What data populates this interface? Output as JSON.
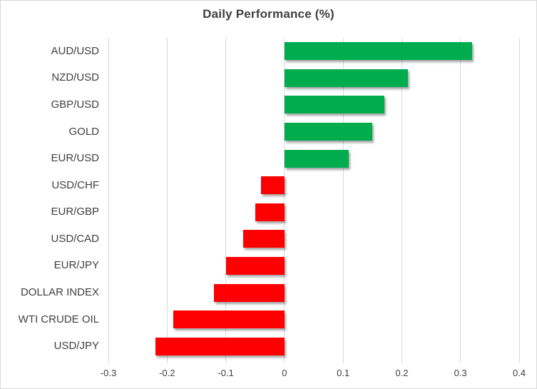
{
  "chart_data": {
    "type": "bar",
    "orientation": "horizontal",
    "title": "Daily Performance (%)",
    "categories": [
      "AUD/USD",
      "NZD/USD",
      "GBP/USD",
      "GOLD",
      "EUR/USD",
      "USD/CHF",
      "EUR/GBP",
      "USD/CAD",
      "EUR/JPY",
      "DOLLAR INDEX",
      "WTI CRUDE OIL",
      "USD/JPY"
    ],
    "values": [
      0.32,
      0.21,
      0.17,
      0.15,
      0.11,
      -0.04,
      -0.05,
      -0.07,
      -0.1,
      -0.12,
      -0.19,
      -0.22
    ],
    "xlabel": "",
    "ylabel": "",
    "xlim": [
      -0.3,
      0.4
    ],
    "xticks": [
      -0.3,
      -0.2,
      -0.1,
      0,
      0.1,
      0.2,
      0.3,
      0.4
    ],
    "xtick_labels": [
      "-0.3",
      "-0.2",
      "-0.1",
      "0",
      "0.1",
      "0.2",
      "0.3",
      "0.4"
    ],
    "grid": true,
    "legend": false,
    "colors": {
      "positive": "#00AC4E",
      "negative": "#FF0000",
      "gridline": "#D9D9D9",
      "title_text": "#3F3F3F",
      "axis_text": "#3F3F3F",
      "background": "#FFFFFF",
      "border": "#D9D9D9"
    }
  }
}
